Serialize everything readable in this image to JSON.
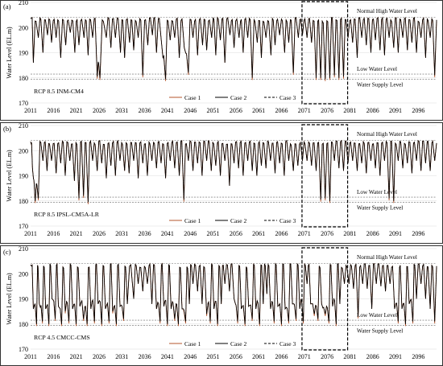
{
  "chart_data": [
    {
      "type": "line",
      "panel_label": "(a)",
      "scenario": "RCP 8.5 INM-CM4",
      "ylabel": "Water Level (EL.m)",
      "ylim": [
        170,
        210
      ],
      "yticks": [
        "170",
        "180",
        "190",
        "200",
        "210"
      ],
      "xlim": [
        2011,
        2100
      ],
      "xticks": [
        "2011",
        "2016",
        "2021",
        "2026",
        "2031",
        "2036",
        "2041",
        "2046",
        "2051",
        "2056",
        "2061",
        "2066",
        "2071",
        "2076",
        "2081",
        "2086",
        "2091",
        "2096"
      ],
      "reference_lines": [
        {
          "name": "Normal High Water Level",
          "value": 204
        },
        {
          "name": "Low Water Level",
          "value": 181.5
        },
        {
          "name": "Water Supply Level",
          "value": 179.5
        }
      ],
      "highlight_range": [
        2070.5,
        2080.5
      ],
      "series": [
        {
          "name": "Case 1",
          "color": "#b5542b"
        },
        {
          "name": "Case 2",
          "color": "#000000"
        },
        {
          "name": "Case 3",
          "color": "#000000"
        }
      ],
      "troughs": [
        [
          2011.6,
          186
        ],
        [
          2012.7,
          196
        ],
        [
          2013.7,
          190
        ],
        [
          2014.7,
          197
        ],
        [
          2015.6,
          194
        ],
        [
          2016.6,
          196
        ],
        [
          2017.6,
          188
        ],
        [
          2018.7,
          193
        ],
        [
          2019.7,
          198
        ],
        [
          2020.7,
          190
        ],
        [
          2021.6,
          193
        ],
        [
          2022.7,
          196
        ],
        [
          2023.6,
          189
        ],
        [
          2024.6,
          196
        ],
        [
          2025.6,
          180.5
        ],
        [
          2026.2,
          180
        ],
        [
          2027.6,
          196
        ],
        [
          2028.6,
          192
        ],
        [
          2029.6,
          196
        ],
        [
          2030.7,
          190
        ],
        [
          2031.6,
          188
        ],
        [
          2032.7,
          194
        ],
        [
          2033.6,
          191
        ],
        [
          2034.6,
          196
        ],
        [
          2035.6,
          181
        ],
        [
          2036.7,
          193
        ],
        [
          2037.7,
          197
        ],
        [
          2038.6,
          190
        ],
        [
          2039.7,
          194
        ],
        [
          2040.6,
          179.5
        ],
        [
          2041.6,
          195
        ],
        [
          2042.6,
          196
        ],
        [
          2043.6,
          188
        ],
        [
          2044.7,
          192
        ],
        [
          2045.6,
          182
        ],
        [
          2046.6,
          196
        ],
        [
          2047.6,
          189
        ],
        [
          2048.7,
          193
        ],
        [
          2049.6,
          191
        ],
        [
          2050.7,
          196
        ],
        [
          2051.6,
          189
        ],
        [
          2052.6,
          195
        ],
        [
          2053.6,
          186
        ],
        [
          2054.7,
          197
        ],
        [
          2055.6,
          192
        ],
        [
          2056.7,
          196
        ],
        [
          2057.6,
          190
        ],
        [
          2058.6,
          196
        ],
        [
          2059.6,
          180
        ],
        [
          2060.7,
          194
        ],
        [
          2061.6,
          188
        ],
        [
          2062.6,
          196
        ],
        [
          2063.7,
          189
        ],
        [
          2064.6,
          193
        ],
        [
          2065.6,
          197
        ],
        [
          2066.7,
          190
        ],
        [
          2067.6,
          194
        ],
        [
          2068.6,
          182
        ],
        [
          2069.7,
          196
        ],
        [
          2070.6,
          197
        ],
        [
          2071.6,
          196
        ],
        [
          2072.6,
          194
        ],
        [
          2073.6,
          180
        ],
        [
          2074.6,
          180
        ],
        [
          2075.6,
          179.5
        ],
        [
          2076.6,
          180
        ],
        [
          2077.6,
          181
        ],
        [
          2078.6,
          180
        ],
        [
          2079.6,
          180.5
        ],
        [
          2080.6,
          196
        ],
        [
          2081.6,
          194
        ],
        [
          2082.6,
          188
        ],
        [
          2083.6,
          196
        ],
        [
          2084.6,
          193
        ],
        [
          2085.6,
          190
        ],
        [
          2086.6,
          195
        ],
        [
          2087.6,
          191
        ],
        [
          2088.6,
          189
        ],
        [
          2089.6,
          196
        ],
        [
          2090.6,
          192
        ],
        [
          2091.6,
          190
        ],
        [
          2092.6,
          196
        ],
        [
          2093.6,
          191
        ],
        [
          2094.6,
          194
        ],
        [
          2095.6,
          190
        ],
        [
          2096.6,
          196
        ],
        [
          2097.6,
          188
        ],
        [
          2098.6,
          196
        ],
        [
          2099.6,
          181
        ]
      ]
    },
    {
      "type": "line",
      "panel_label": "(b)",
      "scenario": "RCP 8.5 IPSL-CM5A-LR",
      "ylabel": "Water Level (EL.m)",
      "ylim": [
        170,
        210
      ],
      "yticks": [
        "170",
        "180",
        "190",
        "200",
        "210"
      ],
      "xlim": [
        2011,
        2100
      ],
      "xticks": [
        "2011",
        "2016",
        "2021",
        "2026",
        "2031",
        "2036",
        "2041",
        "2046",
        "2051",
        "2056",
        "2061",
        "2066",
        "2071",
        "2076",
        "2081",
        "2086",
        "2091",
        "2096"
      ],
      "reference_lines": [
        {
          "name": "Normal High Water Level",
          "value": 204
        },
        {
          "name": "Low Water Level",
          "value": 181.5
        },
        {
          "name": "Water Supply Level",
          "value": 179.5
        }
      ],
      "highlight_range": [
        2070.5,
        2080.5
      ],
      "series": [
        {
          "name": "Case 1",
          "color": "#b5542b"
        },
        {
          "name": "Case 2",
          "color": "#000000"
        },
        {
          "name": "Case 3",
          "color": "#000000"
        }
      ],
      "troughs": [
        [
          2011.4,
          193
        ],
        [
          2012.0,
          180
        ],
        [
          2012.7,
          181
        ],
        [
          2013.7,
          196
        ],
        [
          2014.6,
          192
        ],
        [
          2015.6,
          196
        ],
        [
          2016.6,
          191
        ],
        [
          2017.6,
          195
        ],
        [
          2018.6,
          190
        ],
        [
          2019.6,
          196
        ],
        [
          2020.6,
          188
        ],
        [
          2021.6,
          181
        ],
        [
          2022.6,
          182
        ],
        [
          2023.6,
          179.5
        ],
        [
          2024.6,
          196
        ],
        [
          2025.6,
          192
        ],
        [
          2026.6,
          195
        ],
        [
          2027.6,
          189
        ],
        [
          2028.6,
          194
        ],
        [
          2029.6,
          190
        ],
        [
          2030.6,
          196
        ],
        [
          2031.6,
          192
        ],
        [
          2032.6,
          191
        ],
        [
          2033.6,
          196
        ],
        [
          2034.6,
          189
        ],
        [
          2035.6,
          195
        ],
        [
          2036.6,
          190
        ],
        [
          2037.6,
          196
        ],
        [
          2038.6,
          193
        ],
        [
          2039.6,
          195
        ],
        [
          2040.6,
          189
        ],
        [
          2041.6,
          196
        ],
        [
          2042.6,
          193
        ],
        [
          2043.6,
          190
        ],
        [
          2044.6,
          180.5
        ],
        [
          2045.6,
          196
        ],
        [
          2046.6,
          192
        ],
        [
          2047.6,
          195
        ],
        [
          2048.6,
          190
        ],
        [
          2049.6,
          196
        ],
        [
          2050.6,
          192
        ],
        [
          2051.6,
          194
        ],
        [
          2052.6,
          190
        ],
        [
          2053.6,
          196
        ],
        [
          2054.6,
          186
        ],
        [
          2055.6,
          195
        ],
        [
          2056.6,
          193
        ],
        [
          2057.6,
          190
        ],
        [
          2058.6,
          196
        ],
        [
          2059.6,
          192
        ],
        [
          2060.6,
          190
        ],
        [
          2061.6,
          194
        ],
        [
          2062.6,
          193
        ],
        [
          2063.6,
          196
        ],
        [
          2064.6,
          191
        ],
        [
          2065.6,
          195
        ],
        [
          2066.6,
          190
        ],
        [
          2067.6,
          196
        ],
        [
          2068.6,
          192
        ],
        [
          2069.6,
          194
        ],
        [
          2070.6,
          196
        ],
        [
          2071.6,
          196
        ],
        [
          2072.6,
          194
        ],
        [
          2073.6,
          192
        ],
        [
          2074.6,
          180.5
        ],
        [
          2075.6,
          181
        ],
        [
          2076.6,
          180
        ],
        [
          2077.6,
          196
        ],
        [
          2078.6,
          193
        ],
        [
          2079.6,
          192
        ],
        [
          2080.6,
          195
        ],
        [
          2081.6,
          196
        ],
        [
          2082.6,
          192
        ],
        [
          2083.6,
          195
        ],
        [
          2084.6,
          191
        ],
        [
          2085.6,
          196
        ],
        [
          2086.6,
          193
        ],
        [
          2087.6,
          190
        ],
        [
          2088.6,
          196
        ],
        [
          2089.6,
          181
        ],
        [
          2090.6,
          180
        ],
        [
          2091.6,
          196
        ],
        [
          2092.6,
          193
        ],
        [
          2093.6,
          195
        ],
        [
          2094.6,
          191
        ],
        [
          2095.6,
          196
        ],
        [
          2096.6,
          192
        ],
        [
          2097.6,
          195
        ],
        [
          2098.6,
          192
        ],
        [
          2099.6,
          196
        ]
      ]
    },
    {
      "type": "line",
      "panel_label": "(c)",
      "scenario": "RCP 4.5 CMCC-CMS",
      "ylabel": "Water Level (EL.m)",
      "ylim": [
        170,
        210
      ],
      "yticks": [
        "170",
        "180",
        "190",
        "200",
        "210"
      ],
      "xlim": [
        2011,
        2100
      ],
      "xticks": [
        "2011",
        "2016",
        "2021",
        "2026",
        "2031",
        "2036",
        "2041",
        "2046",
        "2051",
        "2056",
        "2061",
        "2066",
        "2071",
        "2076",
        "2081",
        "2086",
        "2091",
        "2096"
      ],
      "reference_lines": [
        {
          "name": "Normal High Water Level",
          "value": 204
        },
        {
          "name": "Low Water Level",
          "value": 181.5
        },
        {
          "name": "Water Supply Level",
          "value": 179.5
        }
      ],
      "highlight_range": [
        2070.5,
        2080.5
      ],
      "series": [
        {
          "name": "Case 1",
          "color": "#b5542b"
        },
        {
          "name": "Case 2",
          "color": "#000000"
        },
        {
          "name": "Case 3",
          "color": "#000000"
        }
      ],
      "troughs": [
        [
          2011.6,
          186
        ],
        [
          2012.3,
          180
        ],
        [
          2012.9,
          188
        ],
        [
          2013.6,
          181
        ],
        [
          2014.3,
          186
        ],
        [
          2015.0,
          180
        ],
        [
          2015.7,
          190
        ],
        [
          2016.4,
          182
        ],
        [
          2017.1,
          187
        ],
        [
          2017.8,
          180
        ],
        [
          2018.6,
          185
        ],
        [
          2019.4,
          181
        ],
        [
          2020.2,
          186
        ],
        [
          2021.0,
          180
        ],
        [
          2021.8,
          187
        ],
        [
          2022.6,
          182
        ],
        [
          2023.4,
          180
        ],
        [
          2024.2,
          186
        ],
        [
          2025.0,
          181
        ],
        [
          2025.8,
          188
        ],
        [
          2026.6,
          180
        ],
        [
          2027.4,
          186
        ],
        [
          2028.2,
          181
        ],
        [
          2029.0,
          185
        ],
        [
          2029.8,
          180
        ],
        [
          2030.6,
          187
        ],
        [
          2031.4,
          182
        ],
        [
          2032.2,
          188
        ],
        [
          2033.6,
          190
        ],
        [
          2034.6,
          196
        ],
        [
          2035.6,
          193
        ],
        [
          2036.6,
          196
        ],
        [
          2037.6,
          188
        ],
        [
          2038.6,
          186
        ],
        [
          2039.4,
          181
        ],
        [
          2040.2,
          187
        ],
        [
          2041.0,
          180
        ],
        [
          2041.8,
          186
        ],
        [
          2042.6,
          182
        ],
        [
          2043.4,
          180
        ],
        [
          2044.2,
          186
        ],
        [
          2045.0,
          181
        ],
        [
          2045.8,
          188
        ],
        [
          2046.6,
          196
        ],
        [
          2047.6,
          193
        ],
        [
          2048.6,
          188
        ],
        [
          2049.6,
          184
        ],
        [
          2050.4,
          181
        ],
        [
          2051.2,
          186
        ],
        [
          2052.0,
          180
        ],
        [
          2052.8,
          188
        ],
        [
          2053.6,
          196
        ],
        [
          2054.6,
          193
        ],
        [
          2055.6,
          190
        ],
        [
          2056.4,
          181
        ],
        [
          2057.2,
          186
        ],
        [
          2058.0,
          180
        ],
        [
          2058.8,
          187
        ],
        [
          2059.6,
          182
        ],
        [
          2060.4,
          186
        ],
        [
          2061.2,
          180
        ],
        [
          2062.0,
          188
        ],
        [
          2062.8,
          192
        ],
        [
          2063.6,
          186
        ],
        [
          2064.4,
          181
        ],
        [
          2065.2,
          187
        ],
        [
          2066.0,
          180
        ],
        [
          2066.8,
          186
        ],
        [
          2067.6,
          181
        ],
        [
          2068.4,
          188
        ],
        [
          2069.2,
          182
        ],
        [
          2070.0,
          186
        ],
        [
          2070.8,
          181
        ],
        [
          2071.6,
          196
        ],
        [
          2072.4,
          188
        ],
        [
          2073.2,
          184
        ],
        [
          2074.0,
          182
        ],
        [
          2074.8,
          188
        ],
        [
          2075.6,
          184
        ],
        [
          2076.4,
          181
        ],
        [
          2077.2,
          187
        ],
        [
          2078.0,
          180
        ],
        [
          2078.8,
          188
        ],
        [
          2079.8,
          196
        ],
        [
          2080.8,
          196
        ],
        [
          2081.8,
          194
        ],
        [
          2082.8,
          183
        ],
        [
          2083.8,
          196
        ],
        [
          2084.8,
          194
        ],
        [
          2085.8,
          186
        ],
        [
          2086.8,
          196
        ],
        [
          2087.8,
          195
        ],
        [
          2088.8,
          193
        ],
        [
          2089.8,
          196
        ],
        [
          2090.8,
          186
        ],
        [
          2091.6,
          181
        ],
        [
          2092.4,
          186
        ],
        [
          2093.2,
          180
        ],
        [
          2094.0,
          188
        ],
        [
          2094.8,
          181
        ],
        [
          2095.6,
          190
        ],
        [
          2096.6,
          196
        ],
        [
          2097.6,
          190
        ],
        [
          2098.6,
          186
        ],
        [
          2099.6,
          181
        ]
      ]
    }
  ]
}
